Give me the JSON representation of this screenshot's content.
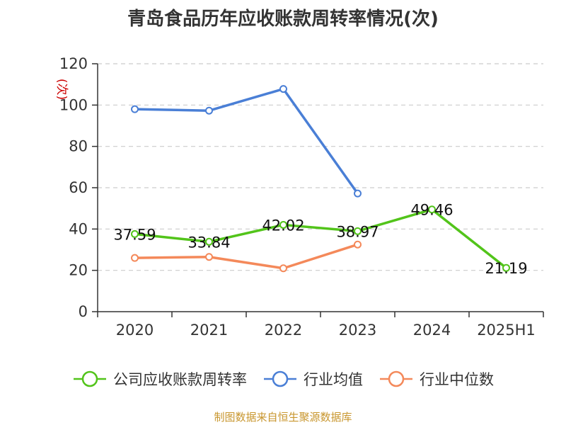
{
  "title": "青岛食品历年应收账款周转率情况(次)",
  "source_note": "制图数据来自恒生聚源数据库",
  "colors": {
    "company": "#52c41a",
    "industry_avg": "#4a7fd6",
    "industry_median": "#f4895a",
    "source": "#c8962e",
    "ylabel": "#cc0000",
    "grid": "#cccccc",
    "axis": "#333333"
  },
  "chart_data": {
    "type": "line",
    "title": "青岛食品历年应收账款周转率情况(次)",
    "ylabel": "(次)",
    "xlabel": "",
    "categories": [
      "2020",
      "2021",
      "2022",
      "2023",
      "2024",
      "2025H1"
    ],
    "ylim": [
      0,
      120
    ],
    "yticks": [
      0,
      20,
      40,
      60,
      80,
      100,
      120
    ],
    "grid": true,
    "legend_position": "bottom",
    "series": [
      {
        "name": "公司应收账款周转率",
        "values": [
          37.59,
          33.84,
          42.02,
          38.97,
          49.46,
          21.19
        ],
        "labels": [
          "37.59",
          "33.84",
          "42.02",
          "38.97",
          "49.46",
          "21.19"
        ],
        "color": "#52c41a"
      },
      {
        "name": "行业均值",
        "values": [
          98,
          97.3,
          107.8,
          57.2,
          null,
          null
        ],
        "color": "#4a7fd6"
      },
      {
        "name": "行业中位数",
        "values": [
          26,
          26.5,
          21,
          32.5,
          null,
          null
        ],
        "color": "#f4895a"
      }
    ]
  }
}
